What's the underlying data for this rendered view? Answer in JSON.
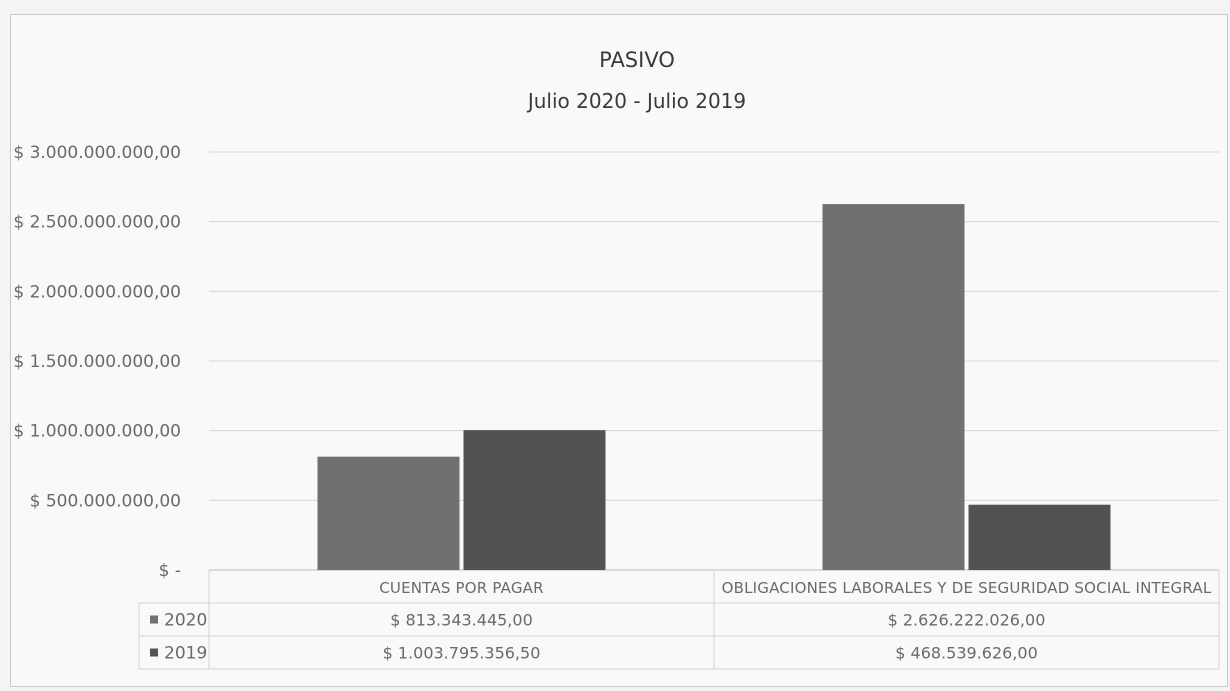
{
  "chart_data": {
    "type": "bar",
    "title": "PASIVO",
    "subtitle": "Julio 2020 - Julio 2019",
    "categories": [
      "CUENTAS POR PAGAR",
      "OBLIGACIONES LABORALES Y DE SEGURIDAD SOCIAL INTEGRAL"
    ],
    "series": [
      {
        "name": "2020",
        "color": "#707070",
        "values": [
          813343445.0,
          2626222026.0
        ],
        "labels": [
          "$ 813.343.445,00",
          "$ 2.626.222.026,00"
        ]
      },
      {
        "name": "2019",
        "color": "#525252",
        "values": [
          1003795356.5,
          468539626.0
        ],
        "labels": [
          "$ 1.003.795.356,50",
          "$ 468.539.626,00"
        ]
      }
    ],
    "ylim": [
      0,
      3000000000
    ],
    "yticks": [
      0,
      500000000,
      1000000000,
      1500000000,
      2000000000,
      2500000000,
      3000000000
    ],
    "ytick_labels": [
      "$ -",
      "$ 500.000.000,00",
      "$ 1.000.000.000,00",
      "$ 1.500.000.000,00",
      "$ 2.000.000.000,00",
      "$ 2.500.000.000,00",
      "$ 3.000.000.000,00"
    ],
    "xlabel": "",
    "ylabel": "",
    "grid": true,
    "legend": "data-table"
  }
}
